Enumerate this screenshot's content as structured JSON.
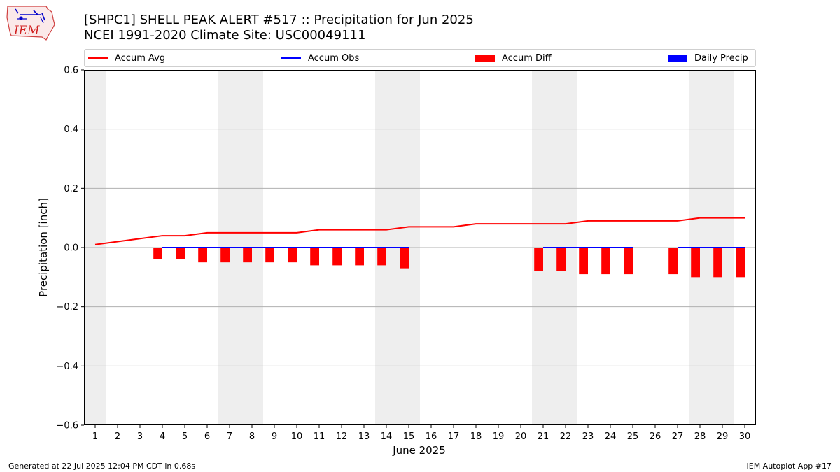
{
  "header": {
    "title_line1": "[SHPC1] SHELL PEAK ALERT #517 :: Precipitation for Jun 2025",
    "title_line2": "NCEI 1991-2020 Climate Site: USC00049111"
  },
  "logo": {
    "text": "IEM",
    "icon": "iem-logo-icon"
  },
  "legend": {
    "items": [
      {
        "label": "Accum Avg",
        "color": "#ff0000",
        "kind": "line"
      },
      {
        "label": "Accum Obs",
        "color": "#0000ff",
        "kind": "line"
      },
      {
        "label": "Accum Diff",
        "color": "#ff0000",
        "kind": "box"
      },
      {
        "label": "Daily Precip",
        "color": "#0000ff",
        "kind": "box"
      }
    ]
  },
  "chart_data": {
    "type": "bar",
    "title": "[SHPC1] SHELL PEAK ALERT #517 :: Precipitation for Jun 2025",
    "subtitle": "NCEI 1991-2020 Climate Site: USC00049111",
    "xlabel": "June 2025",
    "ylabel": "Precipitation [inch]",
    "ylim": [
      -0.6,
      0.6
    ],
    "xlim": [
      0.5,
      30.5
    ],
    "y_ticks": [
      -0.6,
      -0.4,
      -0.2,
      0.0,
      0.2,
      0.4,
      0.6
    ],
    "y_tick_labels": [
      "−0.6",
      "−0.4",
      "−0.2",
      "0.0",
      "0.2",
      "0.4",
      "0.6"
    ],
    "x_ticks": [
      1,
      2,
      3,
      4,
      5,
      6,
      7,
      8,
      9,
      10,
      11,
      12,
      13,
      14,
      15,
      16,
      17,
      18,
      19,
      20,
      21,
      22,
      23,
      24,
      25,
      26,
      27,
      28,
      29,
      30
    ],
    "grid": "horizontal",
    "legend_position": "top",
    "weekend_shading": [
      [
        0.5,
        1.5
      ],
      [
        6.5,
        8.5
      ],
      [
        13.5,
        15.5
      ],
      [
        20.5,
        22.5
      ],
      [
        27.5,
        29.5
      ]
    ],
    "series": [
      {
        "name": "Accum Avg",
        "type": "line",
        "color": "#ff0000",
        "x": [
          1,
          2,
          3,
          4,
          5,
          6,
          7,
          8,
          9,
          10,
          11,
          12,
          13,
          14,
          15,
          16,
          17,
          18,
          19,
          20,
          21,
          22,
          23,
          24,
          25,
          26,
          27,
          28,
          29,
          30
        ],
        "values": [
          0.01,
          0.02,
          0.03,
          0.04,
          0.04,
          0.05,
          0.05,
          0.05,
          0.05,
          0.05,
          0.06,
          0.06,
          0.06,
          0.06,
          0.07,
          0.07,
          0.07,
          0.08,
          0.08,
          0.08,
          0.08,
          0.08,
          0.09,
          0.09,
          0.09,
          0.09,
          0.09,
          0.1,
          0.1,
          0.1
        ]
      },
      {
        "name": "Accum Obs",
        "type": "line",
        "color": "#0000ff",
        "segments": [
          {
            "x": [
              4,
              5,
              6,
              7,
              8,
              9,
              10,
              11,
              12,
              13,
              14,
              15
            ],
            "values": [
              0,
              0,
              0,
              0,
              0,
              0,
              0,
              0,
              0,
              0,
              0,
              0
            ]
          },
          {
            "x": [
              21,
              22,
              23,
              24,
              25
            ],
            "values": [
              0,
              0,
              0,
              0,
              0
            ]
          },
          {
            "x": [
              27,
              28,
              29,
              30
            ],
            "values": [
              0,
              0,
              0,
              0
            ]
          }
        ]
      },
      {
        "name": "Accum Diff",
        "type": "bar",
        "color": "#ff0000",
        "x": [
          4,
          5,
          6,
          7,
          8,
          9,
          10,
          11,
          12,
          13,
          14,
          15,
          21,
          22,
          23,
          24,
          25,
          27,
          28,
          29,
          30
        ],
        "values": [
          -0.04,
          -0.04,
          -0.05,
          -0.05,
          -0.05,
          -0.05,
          -0.05,
          -0.06,
          -0.06,
          -0.06,
          -0.06,
          -0.07,
          -0.08,
          -0.08,
          -0.09,
          -0.09,
          -0.09,
          -0.09,
          -0.1,
          -0.1,
          -0.1
        ]
      },
      {
        "name": "Daily Precip",
        "type": "bar",
        "color": "#0000ff",
        "x": [],
        "values": []
      }
    ]
  },
  "footer": {
    "left": "Generated at 22 Jul 2025 12:04 PM CDT in 0.68s",
    "right": "IEM Autoplot App #17"
  }
}
